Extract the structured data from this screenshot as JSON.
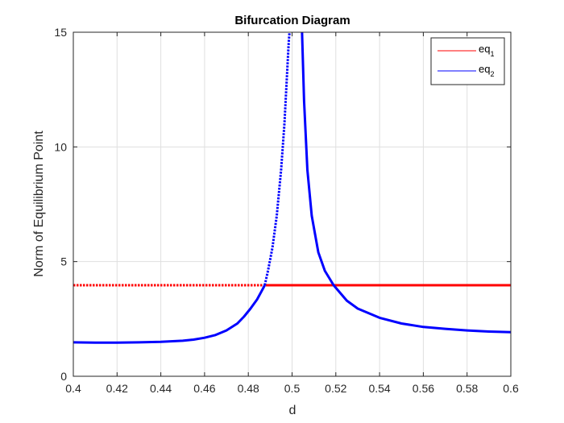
{
  "chart_data": {
    "type": "line",
    "title": "Bifurcation Diagram",
    "xlabel": "d",
    "ylabel": "Norm of Equilibrium Point",
    "xlim": [
      0.4,
      0.6
    ],
    "ylim": [
      0,
      15
    ],
    "xticks": [
      "0.4",
      "0.42",
      "0.44",
      "0.46",
      "0.48",
      "0.5",
      "0.52",
      "0.54",
      "0.56",
      "0.58",
      "0.6"
    ],
    "yticks": [
      "0",
      "5",
      "10",
      "15"
    ],
    "grid": true,
    "legend_position": "top-right",
    "legend": [
      {
        "base": "eq",
        "sub": "1",
        "color": "#ff0000"
      },
      {
        "base": "eq",
        "sub": "2",
        "color": "#0000ff"
      }
    ],
    "series": [
      {
        "name": "eq_1",
        "color": "#ff0000",
        "segments": [
          {
            "style": "dotted",
            "x": [
              0.4,
              0.488
            ],
            "y": [
              3.97,
              3.97
            ]
          },
          {
            "style": "solid",
            "x": [
              0.488,
              0.6
            ],
            "y": [
              3.97,
              3.97
            ]
          }
        ]
      },
      {
        "name": "eq_2",
        "color": "#0000ff",
        "segments": [
          {
            "style": "solid",
            "x": [
              0.4,
              0.41,
              0.42,
              0.43,
              0.44,
              0.45,
              0.455,
              0.46,
              0.465,
              0.47,
              0.475,
              0.478,
              0.481,
              0.484,
              0.486,
              0.4875
            ],
            "y": [
              1.48,
              1.47,
              1.47,
              1.48,
              1.5,
              1.55,
              1.6,
              1.68,
              1.8,
              2.0,
              2.3,
              2.6,
              2.95,
              3.35,
              3.7,
              3.97
            ]
          },
          {
            "style": "dotted",
            "x": [
              0.4875,
              0.489,
              0.491,
              0.493,
              0.495,
              0.4965,
              0.4975,
              0.4985,
              0.499
            ],
            "y": [
              3.97,
              4.6,
              5.6,
              7.0,
              9.0,
              11.0,
              12.8,
              14.6,
              15.2
            ]
          },
          {
            "style": "solid",
            "x": [
              0.5045,
              0.5055,
              0.507,
              0.509,
              0.512,
              0.515,
              0.519,
              0.525,
              0.53,
              0.54,
              0.55,
              0.56,
              0.57,
              0.58,
              0.59,
              0.6
            ],
            "y": [
              15.2,
              12.0,
              9.0,
              7.0,
              5.4,
              4.6,
              3.97,
              3.3,
              2.95,
              2.55,
              2.3,
              2.15,
              2.07,
              2.0,
              1.95,
              1.92
            ]
          }
        ]
      }
    ]
  }
}
